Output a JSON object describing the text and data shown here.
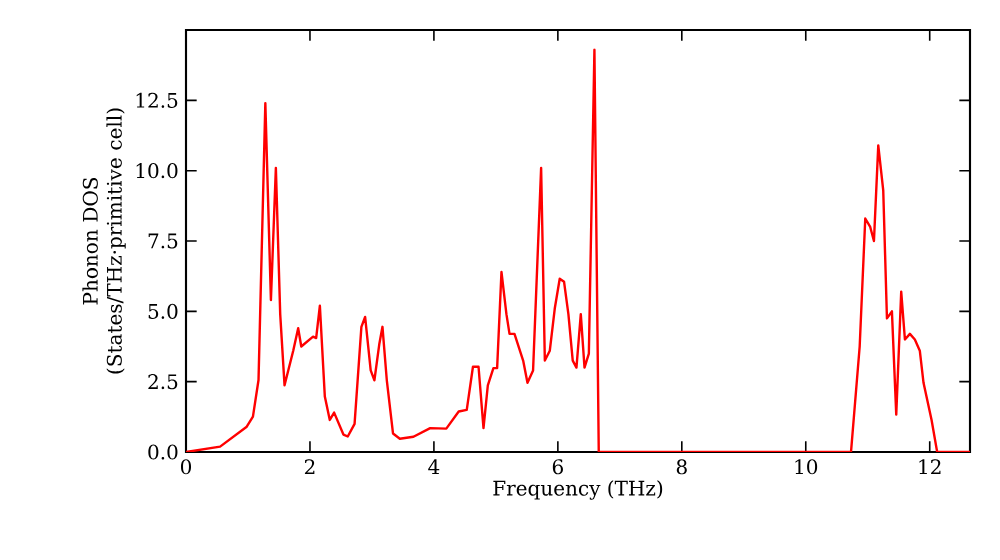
{
  "chart_data": {
    "type": "line",
    "xlabel": "Frequency (THz)",
    "ylabel": "Phonon DOS (States/THz·primitive cell)",
    "xlim": [
      0,
      12.65
    ],
    "ylim": [
      0,
      15
    ],
    "xticks": [
      0,
      2,
      4,
      6,
      8,
      10,
      12
    ],
    "yticks": [
      {
        "value": 0,
        "label": "0.0"
      },
      {
        "value": 2.5,
        "label": "2.5"
      },
      {
        "value": 5,
        "label": "5.0"
      },
      {
        "value": 7.5,
        "label": "7.5"
      },
      {
        "value": 10,
        "label": "10.0"
      },
      {
        "value": 12.5,
        "label": "12.5"
      }
    ],
    "marker": "none",
    "line_style": "solid",
    "series": [
      {
        "color": "#ff0000",
        "x": [
          0,
          0.55,
          0.98,
          1.08,
          1.17,
          1.28,
          1.37,
          1.45,
          1.52,
          1.59,
          1.73,
          1.81,
          1.86,
          2.05,
          2.1,
          2.16,
          2.24,
          2.32,
          2.39,
          2.54,
          2.61,
          2.72,
          2.83,
          2.89,
          2.98,
          3.04,
          3.12,
          3.17,
          3.24,
          3.34,
          3.45,
          3.67,
          3.94,
          4.2,
          4.4,
          4.53,
          4.63,
          4.72,
          4.8,
          4.87,
          4.96,
          5.02,
          5.09,
          5.17,
          5.22,
          5.3,
          5.44,
          5.51,
          5.6,
          5.73,
          5.79,
          5.87,
          5.95,
          6.03,
          6.1,
          6.17,
          6.24,
          6.3,
          6.37,
          6.43,
          6.5,
          6.59,
          6.66,
          6.7,
          10.73,
          10.87,
          10.96,
          11.04,
          11.1,
          11.17,
          11.25,
          11.31,
          11.39,
          11.46,
          11.54,
          11.6,
          11.68,
          11.76,
          11.84,
          11.9,
          12.03,
          12.12,
          12.65
        ],
        "values": [
          0,
          0.19,
          0.9,
          1.26,
          2.56,
          12.4,
          5.4,
          10.1,
          4.9,
          2.37,
          3.6,
          4.4,
          3.75,
          4.1,
          4.05,
          5.2,
          1.97,
          1.14,
          1.4,
          0.62,
          0.55,
          1.0,
          4.45,
          4.8,
          2.9,
          2.55,
          3.85,
          4.45,
          2.55,
          0.66,
          0.47,
          0.54,
          0.85,
          0.83,
          1.44,
          1.5,
          3.03,
          3.03,
          0.85,
          2.37,
          2.98,
          2.98,
          6.4,
          4.9,
          4.2,
          4.2,
          3.25,
          2.46,
          2.9,
          10.1,
          3.25,
          3.6,
          5.1,
          6.16,
          6.05,
          4.9,
          3.25,
          3.0,
          4.9,
          3.0,
          3.5,
          14.3,
          0,
          0,
          0,
          3.75,
          8.3,
          8.0,
          7.5,
          10.9,
          9.3,
          4.75,
          5.0,
          1.33,
          5.7,
          4.0,
          4.2,
          4.0,
          3.6,
          2.46,
          1.14,
          0,
          0
        ]
      }
    ]
  }
}
